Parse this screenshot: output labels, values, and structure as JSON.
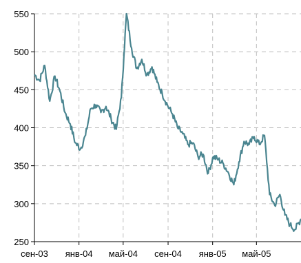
{
  "chart_data": {
    "type": "line",
    "title": "",
    "xlabel": "",
    "ylabel": "",
    "ylim": [
      250,
      550
    ],
    "y_ticks": [
      250,
      300,
      350,
      400,
      450,
      500,
      550
    ],
    "x_ticks": [
      "сен-03",
      "янв-04",
      "май-04",
      "сен-04",
      "янв-05",
      "май-05"
    ],
    "x_tick_dates": [
      "2003-09-01",
      "2004-01-01",
      "2004-05-01",
      "2004-09-01",
      "2005-01-01",
      "2005-05-01"
    ],
    "xlim": [
      "2003-09-01",
      "2005-08-31"
    ],
    "grid": true,
    "legend": "none",
    "line_color": "#4a8590",
    "series": [
      {
        "x": [
          "2003-09-01",
          "2003-09-15",
          "2003-09-29",
          "2003-10-13",
          "2003-10-27",
          "2003-11-10",
          "2003-11-24",
          "2003-12-08",
          "2003-12-22",
          "2004-01-05",
          "2004-01-19",
          "2004-02-02",
          "2004-02-16",
          "2004-03-01",
          "2004-03-15",
          "2004-03-29",
          "2004-04-12",
          "2004-04-26",
          "2004-05-03",
          "2004-05-10",
          "2004-05-24",
          "2004-06-07",
          "2004-06-21",
          "2004-07-05",
          "2004-07-19",
          "2004-08-02",
          "2004-08-16",
          "2004-08-30",
          "2004-09-13",
          "2004-09-27",
          "2004-10-11",
          "2004-10-25",
          "2004-11-08",
          "2004-11-22",
          "2004-12-06",
          "2004-12-20",
          "2005-01-03",
          "2005-01-17",
          "2005-01-31",
          "2005-02-14",
          "2005-02-28",
          "2005-03-14",
          "2005-03-28",
          "2005-04-11",
          "2005-04-25",
          "2005-05-09",
          "2005-05-23",
          "2005-06-06",
          "2005-06-20",
          "2005-07-04",
          "2005-07-18",
          "2005-08-01",
          "2005-08-15",
          "2005-08-31"
        ],
        "values": [
          470,
          462,
          482,
          435,
          468,
          448,
          420,
          405,
          380,
          372,
          390,
          425,
          430,
          420,
          428,
          412,
          398,
          440,
          495,
          550,
          505,
          478,
          490,
          470,
          480,
          460,
          445,
          430,
          418,
          400,
          392,
          378,
          380,
          362,
          365,
          340,
          362,
          358,
          352,
          340,
          325,
          355,
          382,
          378,
          388,
          378,
          390,
          312,
          298,
          312,
          285,
          272,
          266,
          280
        ]
      }
    ]
  }
}
